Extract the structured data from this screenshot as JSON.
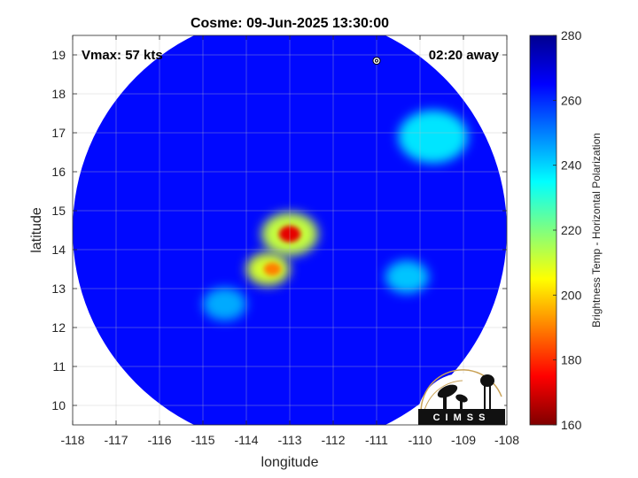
{
  "chart_data": {
    "type": "heatmap",
    "title": "Cosme: 09-Jun-2025 13:30:00",
    "xlabel": "longitude",
    "ylabel": "latitude",
    "xlim": [
      -118,
      -108
    ],
    "ylim": [
      9.5,
      19.5
    ],
    "xticks": [
      -118,
      -117,
      -116,
      -115,
      -114,
      -113,
      -112,
      -111,
      -110,
      -109,
      -108
    ],
    "yticks": [
      10,
      11,
      12,
      13,
      14,
      15,
      16,
      17,
      18,
      19
    ],
    "grid": true,
    "annotations": {
      "top_left": "Vmax: 57 kts",
      "top_right": "02:20 away"
    },
    "colorbar": {
      "label": "Brightness Temp - Horizontal Polarization",
      "range": [
        160,
        280
      ],
      "ticks": [
        160,
        180,
        200,
        220,
        240,
        260,
        280
      ],
      "colormap": "jet"
    },
    "swath": {
      "center": [
        -113.0,
        14.5
      ],
      "radius_deg": 5.0,
      "background_value": 264
    },
    "features": [
      {
        "name": "eye core",
        "center": [
          -113.0,
          14.4
        ],
        "radius_deg": 0.25,
        "value": 172
      },
      {
        "name": "eyewall",
        "center": [
          -113.0,
          14.4
        ],
        "radius_deg": 0.65,
        "value": 212
      },
      {
        "name": "southern band",
        "center": [
          -113.5,
          13.5
        ],
        "radius_deg": 0.5,
        "value": 210
      },
      {
        "name": "southern band core",
        "center": [
          -113.4,
          13.5
        ],
        "radius_deg": 0.2,
        "value": 190
      },
      {
        "name": "northeast cloud",
        "center": [
          -109.7,
          16.9
        ],
        "radius_deg": 0.8,
        "value": 238
      },
      {
        "name": "east cloud",
        "center": [
          -110.3,
          13.3
        ],
        "radius_deg": 0.5,
        "value": 242
      },
      {
        "name": "southwest cloud",
        "center": [
          -114.5,
          12.6
        ],
        "radius_deg": 0.5,
        "value": 245
      }
    ],
    "marker": {
      "lon": -111.0,
      "lat": 18.85,
      "label": "storm position"
    }
  },
  "logo": {
    "text": "CIMSS"
  }
}
